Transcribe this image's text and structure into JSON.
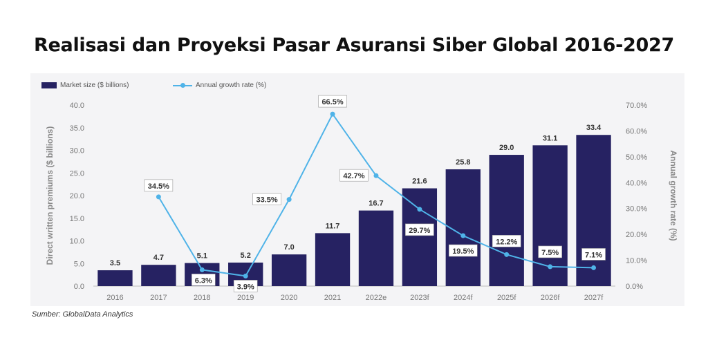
{
  "title": "Realisasi dan Proyeksi Pasar Asuransi Siber Global 2016-2027",
  "source": "Sumber: GlobalData Analytics",
  "colors": {
    "bar": "#262262",
    "line": "#4fb3e8",
    "panel": "#f4f4f6"
  },
  "chart_data": {
    "type": "bar+line",
    "categories": [
      "2016",
      "2017",
      "2018",
      "2019",
      "2020",
      "2021",
      "2022e",
      "2023f",
      "2024f",
      "2025f",
      "2026f",
      "2027f"
    ],
    "series": [
      {
        "name": "Market size ($ billions)",
        "type": "bar",
        "axis": "left",
        "values": [
          3.5,
          4.7,
          5.1,
          5.2,
          7.0,
          11.7,
          16.7,
          21.6,
          25.8,
          29.0,
          31.1,
          33.4
        ],
        "labels": [
          "3.5",
          "4.7",
          "5.1",
          "5.2",
          "7.0",
          "11.7",
          "16.7",
          "21.6",
          "25.8",
          "29.0",
          "31.1",
          "33.4"
        ]
      },
      {
        "name": "Annual growth rate (%)",
        "type": "line",
        "axis": "right",
        "values": [
          null,
          34.5,
          6.3,
          3.9,
          33.5,
          66.5,
          42.7,
          29.7,
          19.5,
          12.2,
          7.5,
          7.1
        ],
        "labels": [
          null,
          "34.5%",
          "6.3%",
          "3.9%",
          "33.5%",
          "66.5%",
          "42.7%",
          "29.7%",
          "19.5%",
          "12.2%",
          "7.5%",
          "7.1%"
        ]
      }
    ],
    "ylabel_left": "Direct written premiums ($ billions)",
    "ylabel_right": "Annual growth rate (%)",
    "ylim_left": [
      0,
      40
    ],
    "ylim_right": [
      0,
      70
    ],
    "yticks_left": [
      "0.0",
      "5.0",
      "10.0",
      "15.0",
      "20.0",
      "25.0",
      "30.0",
      "35.0",
      "40.0"
    ],
    "yticks_right": [
      "0.0%",
      "10.0%",
      "20.0%",
      "30.0%",
      "40.0%",
      "50.0%",
      "60.0%",
      "70.0%"
    ],
    "legend_position": "top-left",
    "grid": false
  }
}
